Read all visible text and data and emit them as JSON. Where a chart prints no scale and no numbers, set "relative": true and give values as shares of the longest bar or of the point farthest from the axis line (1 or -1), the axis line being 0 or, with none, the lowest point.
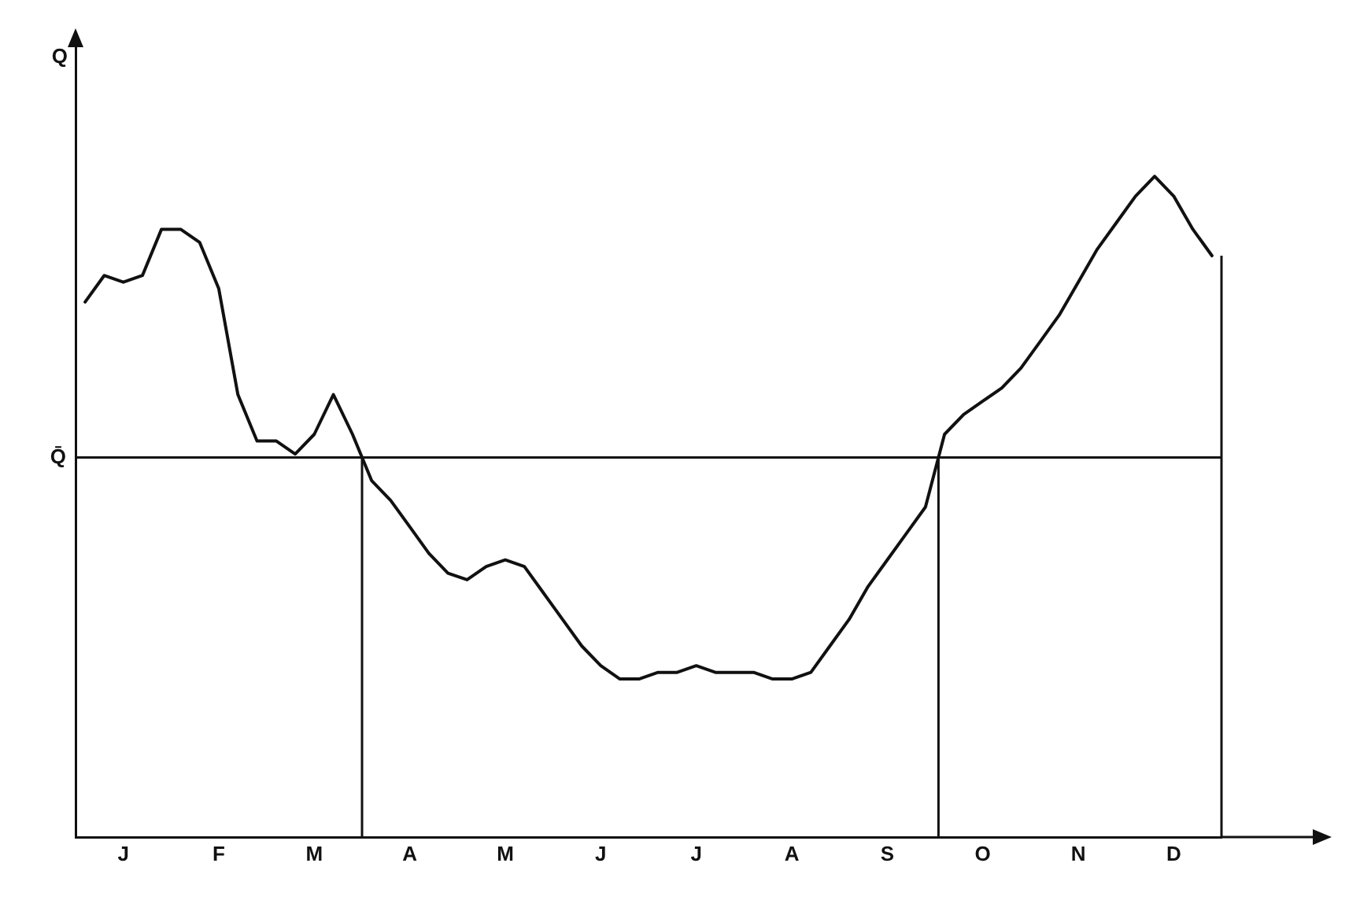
{
  "chart_data": {
    "type": "line",
    "relative": true,
    "annotations": [
      "Q"
    ],
    "color": "#111111",
    "grid": false,
    "legend": false,
    "marker": "none",
    "line_style": "solid",
    "categories": [
      null,
      null,
      "J",
      null,
      null,
      null,
      null,
      "F",
      null,
      null,
      null,
      null,
      "M",
      null,
      null,
      null,
      null,
      "A",
      null,
      null,
      null,
      null,
      "M",
      null,
      null,
      null,
      null,
      "J",
      null,
      null,
      null,
      null,
      "J",
      null,
      null,
      null,
      null,
      "A",
      null,
      null,
      null,
      null,
      "S",
      null,
      null,
      null,
      null,
      "O",
      null,
      null,
      null,
      null,
      "N",
      null,
      null,
      null,
      null,
      "D",
      null,
      null
    ],
    "values": [
      0.81,
      0.85,
      0.84,
      0.85,
      0.92,
      0.92,
      0.9,
      0.83,
      0.67,
      0.6,
      0.6,
      0.58,
      0.61,
      0.67,
      0.61,
      0.54,
      0.51,
      0.47,
      0.43,
      0.4,
      0.39,
      0.41,
      0.42,
      0.41,
      0.37,
      0.33,
      0.29,
      0.26,
      0.24,
      0.24,
      0.25,
      0.25,
      0.26,
      0.25,
      0.25,
      0.25,
      0.24,
      0.24,
      0.25,
      0.29,
      0.33,
      0.38,
      0.42,
      0.46,
      0.5,
      0.61,
      0.64,
      0.66,
      0.68,
      0.71,
      0.75,
      0.79,
      0.84,
      0.89,
      0.93,
      0.97,
      1.0,
      0.97,
      0.92,
      0.88
    ],
    "ref_lines": [
      {
        "axis": "y",
        "value": 0.575,
        "label": "Q̄"
      }
    ]
  }
}
